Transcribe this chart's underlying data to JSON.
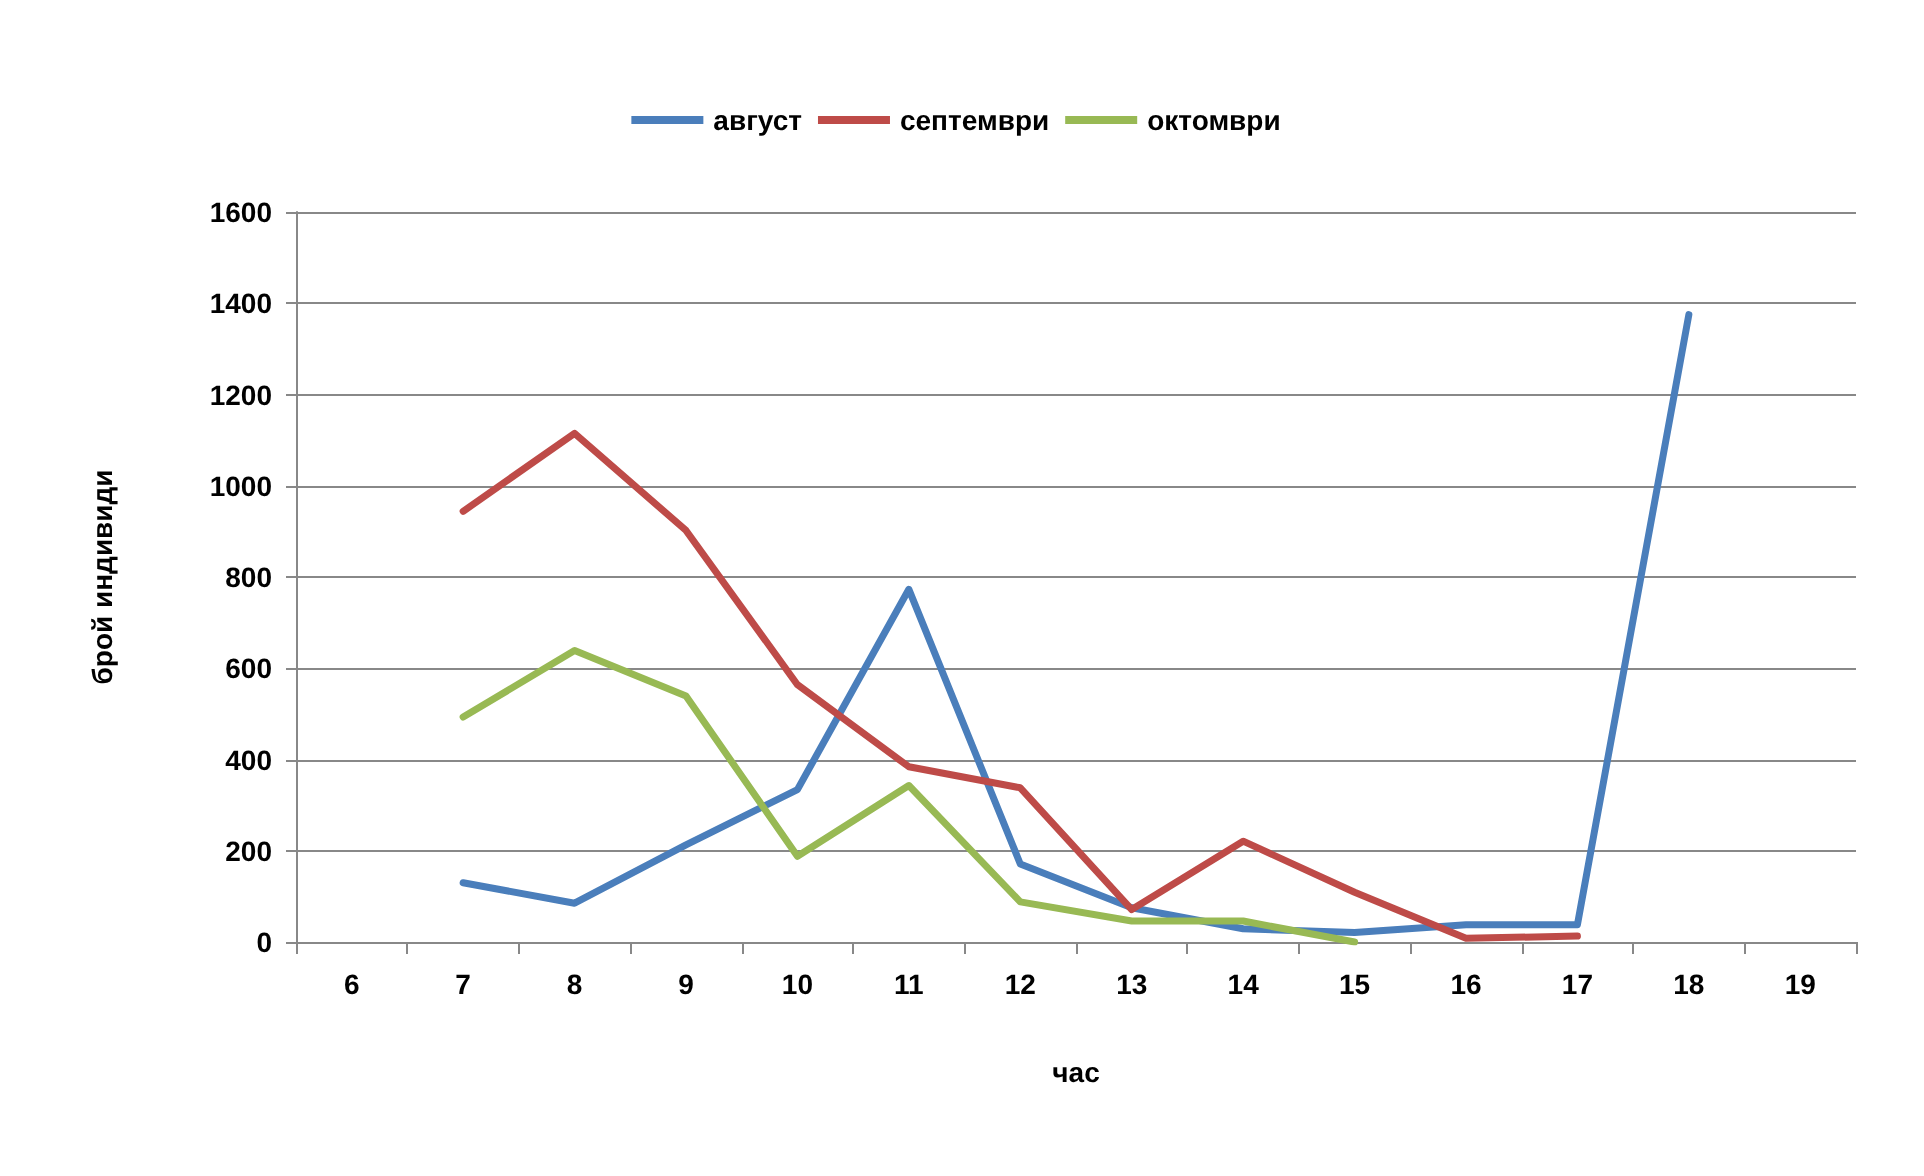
{
  "chart_data": {
    "type": "line",
    "xlabel": "час",
    "ylabel": "брой индивиди",
    "categories": [
      "6",
      "7",
      "8",
      "9",
      "10",
      "11",
      "12",
      "13",
      "14",
      "15",
      "16",
      "17",
      "18",
      "19"
    ],
    "series": [
      {
        "name": "август",
        "color": "#4a7ebb",
        "values": [
          null,
          130,
          85,
          213,
          334,
          773,
          171,
          75,
          29,
          21,
          38,
          38,
          1375,
          null
        ]
      },
      {
        "name": "септември",
        "color": "#be4b48",
        "values": [
          null,
          944,
          1115,
          902,
          564,
          384,
          338,
          71,
          221,
          109,
          8,
          13,
          null,
          null
        ]
      },
      {
        "name": "октомври",
        "color": "#98b954",
        "values": [
          null,
          493,
          639,
          539,
          188,
          343,
          88,
          46,
          46,
          0,
          null,
          null,
          null,
          null
        ]
      }
    ],
    "ylim": [
      0,
      1600
    ],
    "yticks": [
      0,
      200,
      400,
      600,
      800,
      1000,
      1200,
      1400,
      1600
    ],
    "grid": "y",
    "legend": "top",
    "marker": "none",
    "line_style": "solid"
  }
}
